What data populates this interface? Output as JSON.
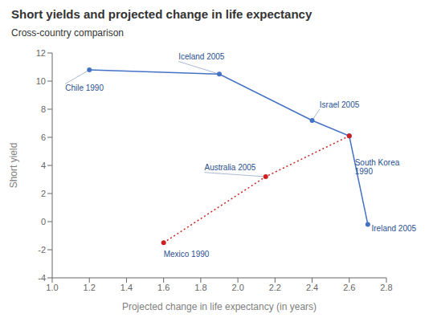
{
  "chart_data": {
    "type": "line",
    "title": "Short yields and projected change in life expectancy",
    "subtitle": "Cross-country comparison",
    "xlabel": "Projected change in life expectancy (in years)",
    "ylabel": "Short yield",
    "xlim": [
      1.0,
      2.8
    ],
    "xticks": [
      {
        "value": 1.0,
        "label": "1.0"
      },
      1.2,
      1.4,
      1.6,
      1.8,
      {
        "value": 2.0,
        "label": "2.0"
      },
      2.2,
      2.4,
      2.6,
      2.8
    ],
    "ylim": [
      -4,
      12
    ],
    "yticks": [
      -4,
      -2,
      0,
      2,
      4,
      6,
      8,
      10,
      12
    ],
    "grid": false,
    "series": [
      {
        "color": "#4472c4",
        "line_style": "solid",
        "marker": "circle",
        "x": [
          1.2,
          1.9,
          2.4,
          2.6,
          2.7
        ],
        "values": [
          10.8,
          10.5,
          7.2,
          6.1,
          -0.2
        ]
      },
      {
        "color": "#cc2222",
        "line_style": "dotted",
        "marker": "circle",
        "x": [
          1.6,
          2.15,
          2.6
        ],
        "values": [
          -1.5,
          3.2,
          6.1
        ]
      }
    ],
    "annotations": [
      {
        "text": "Chile 1990",
        "x": 1.07,
        "y": 9.8,
        "point": [
          1.2,
          10.8
        ],
        "color": "#2a5090"
      },
      {
        "text": "Iceland 2005",
        "x": 1.68,
        "y": 11.4,
        "point": [
          1.9,
          10.5
        ],
        "color": "#2a5090"
      },
      {
        "text": "Israel 2005",
        "x": 2.44,
        "y": 8.0,
        "point": [
          2.4,
          7.2
        ],
        "color": "#2a5090"
      },
      {
        "text": "South Korea\n1990",
        "x": 2.63,
        "y": 4.5,
        "color": "#2a5090"
      },
      {
        "text": "Ireland 2005",
        "x": 2.72,
        "y": -0.2,
        "color": "#2a5090"
      },
      {
        "text": "Mexico 1990",
        "x": 1.6,
        "y": -2.0,
        "color": "#2a5090"
      },
      {
        "text": "Australia 2005",
        "x": 1.82,
        "y": 3.5,
        "point": [
          2.15,
          3.2
        ],
        "color": "#2a5090"
      }
    ]
  }
}
